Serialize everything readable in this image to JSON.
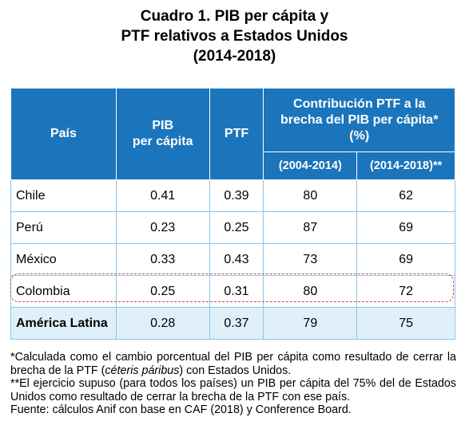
{
  "title": [
    "Cuadro 1. PIB per cápita y",
    "PTF relativos a Estados Unidos",
    "(2014-2018)"
  ],
  "table": {
    "header": {
      "country": "País",
      "pib": [
        "PIB",
        "per cápita"
      ],
      "ptf": "PTF",
      "contribution": [
        "Contribución PTF a la",
        "brecha del PIB per cápita*",
        "(%)"
      ],
      "periods": [
        "(2004-2014)",
        "(2014-2018)**"
      ]
    },
    "rows": [
      [
        "Chile",
        0.41,
        0.39,
        80,
        62
      ],
      [
        "Perú",
        0.23,
        0.25,
        87,
        69
      ],
      [
        "México",
        0.33,
        0.43,
        73,
        69
      ],
      [
        "Colombia",
        0.25,
        0.31,
        80,
        72
      ],
      [
        "América Latina",
        0.28,
        0.37,
        79,
        75
      ]
    ]
  },
  "footnotes": [
    [
      "*Calculada como el cambio porcentual del PIB per cápita como resultado de cerrar la brecha de la PTF (",
      "céteris páribus",
      ") con Estados Unidos."
    ],
    [
      "**El ejercicio supuso (para todos los países) un PIB per cápita del 75% del de Estados Unidos como resultado de cerrar la brecha de la PTF con ese país."
    ],
    [
      "Fuente: cálculos Anif con base en CAF (2018) y Conference Board."
    ]
  ]
}
